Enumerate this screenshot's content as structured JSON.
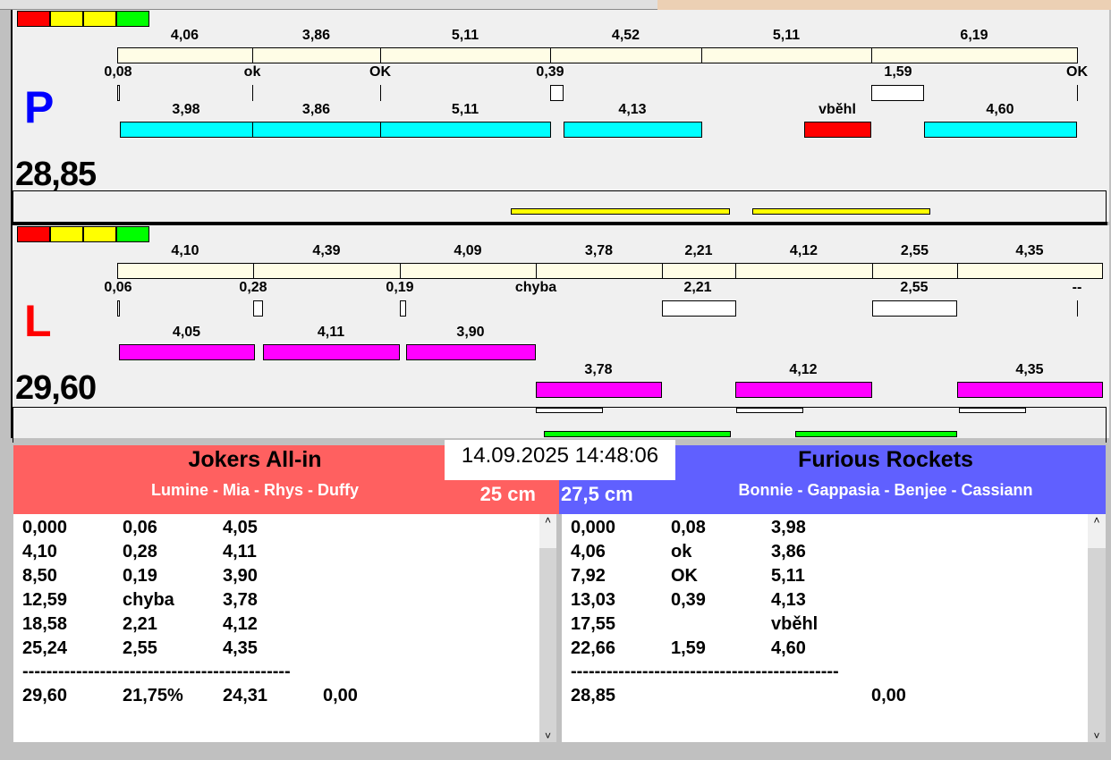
{
  "colors": {
    "cream": "#fffde6",
    "cyan": "#00ffff",
    "magenta": "#ff00ff",
    "red": "#ff0000",
    "yellow": "#ffff00",
    "green": "#00ff00",
    "team_left": "#ff6060",
    "team_right": "#6060ff"
  },
  "top": {
    "letter": "P",
    "total": "28,85",
    "bar_labels": [
      "4,06",
      "3,86",
      "5,11",
      "4,52",
      "5,11",
      "6,19"
    ],
    "reaction_labels": [
      "0,08",
      "ok",
      "OK",
      "0,39",
      "1,59",
      "OK"
    ],
    "run_labels": [
      "3,98",
      "3,86",
      "5,11",
      "4,13",
      "vběhl",
      "4,60"
    ]
  },
  "bottom": {
    "letter": "L",
    "total": "29,60",
    "bar_labels": [
      "4,10",
      "4,39",
      "4,09",
      "3,78",
      "2,21",
      "4,12",
      "2,55",
      "4,35"
    ],
    "reaction_labels": [
      "0,06",
      "0,28",
      "0,19",
      "chyba",
      "2,21",
      "2,55",
      "--"
    ],
    "run_labels": [
      "4,05",
      "4,11",
      "3,90",
      "3,78",
      "4,12",
      "4,35"
    ]
  },
  "timestamp": "14.09.2025 14:48:06",
  "team_left": {
    "name": "Jokers All-in",
    "members": "Lumine - Mia - Rhys - Duffy",
    "height": "25 cm",
    "rows": [
      [
        "0,000",
        "0,06",
        "4,05",
        ""
      ],
      [
        "4,10",
        "0,28",
        "4,11",
        ""
      ],
      [
        "8,50",
        "0,19",
        "3,90",
        ""
      ],
      [
        "12,59",
        "chyba",
        "3,78",
        ""
      ],
      [
        "18,58",
        "2,21",
        "4,12",
        ""
      ],
      [
        "25,24",
        "2,55",
        "4,35",
        ""
      ]
    ],
    "separator": "---------------------------------------------",
    "summary": [
      "29,60",
      "21,75%",
      "24,31",
      "0,00"
    ]
  },
  "team_right": {
    "name": "Furious Rockets",
    "members": "Bonnie - Gappasia - Benjee - Cassiann",
    "height": "27,5 cm",
    "rows": [
      [
        "0,000",
        "0,08",
        "3,98",
        ""
      ],
      [
        "4,06",
        "ok",
        "3,86",
        ""
      ],
      [
        "7,92",
        "OK",
        "5,11",
        ""
      ],
      [
        "13,03",
        "0,39",
        "4,13",
        ""
      ],
      [
        "17,55",
        "",
        "vběhl",
        ""
      ],
      [
        "22,66",
        "1,59",
        "4,60",
        ""
      ]
    ],
    "separator": "---------------------------------------------",
    "summary": [
      "28,85",
      "",
      "",
      "0,00"
    ]
  }
}
